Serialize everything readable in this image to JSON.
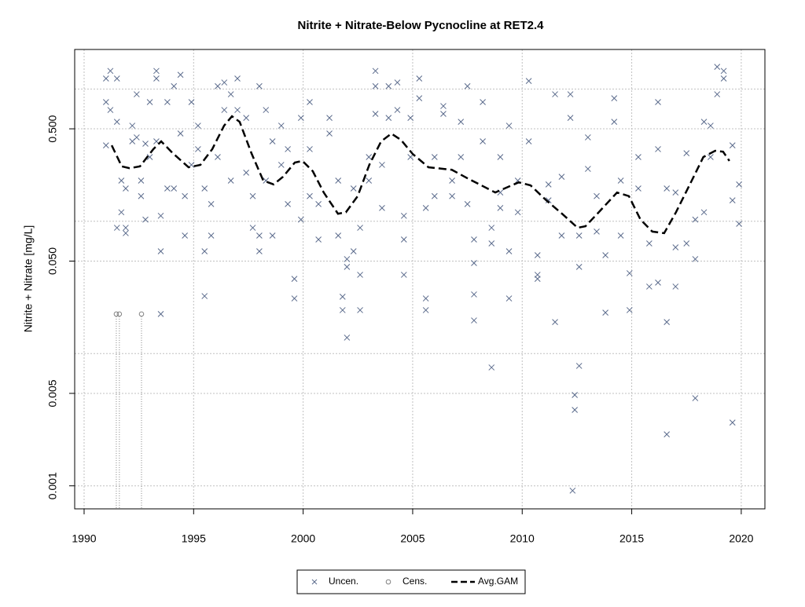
{
  "chart_data": {
    "type": "scatter",
    "title": "Nitrite + Nitrate-Below Pycnocline at RET2.4",
    "y_label": "Nitrite + Nitrate [mg/L]",
    "log_y": true,
    "grid": true,
    "legend": "bottom",
    "xlim": [
      1989.57,
      2021.08
    ],
    "ylim": [
      0.00067,
      1.99
    ],
    "xticks": [
      1990,
      1995,
      2000,
      2005,
      2010,
      2015,
      2020
    ],
    "yticks": [
      {
        "value": 0.5,
        "label": "0.500"
      },
      {
        "value": 0.05,
        "label": "0.050"
      },
      {
        "value": 0.005,
        "label": "0.005"
      },
      {
        "value": 0.001,
        "label": "0.001"
      }
    ],
    "minor_grid_y": [
      1,
      0.1,
      0.01
    ],
    "series": [
      {
        "name": "Uncen.",
        "marker": "x",
        "color": "#5b6b8c",
        "x": [
          1991.0,
          1991.0,
          1991.0,
          1991.2,
          1991.2,
          1991.5,
          1991.5,
          1991.5,
          1991.7,
          1991.7,
          1991.9,
          1991.9,
          1991.9,
          1992.2,
          1992.2,
          1992.4,
          1992.4,
          1992.6,
          1992.6,
          1992.8,
          1992.8,
          1993.0,
          1993.0,
          1993.3,
          1993.3,
          1993.3,
          1993.5,
          1993.5,
          1993.5,
          1993.8,
          1993.8,
          1994.1,
          1994.1,
          1994.4,
          1994.4,
          1994.6,
          1994.6,
          1994.9,
          1994.9,
          1995.2,
          1995.2,
          1995.5,
          1995.5,
          1995.5,
          1995.8,
          1995.8,
          1996.1,
          1996.1,
          1996.4,
          1996.4,
          1996.7,
          1996.7,
          1997.0,
          1997.0,
          1997.4,
          1997.4,
          1997.7,
          1997.7,
          1998.0,
          1998.0,
          1998.0,
          1998.3,
          1998.3,
          1998.6,
          1998.6,
          1999.0,
          1999.0,
          1999.3,
          1999.3,
          1999.6,
          1999.6,
          1999.9,
          1999.9,
          2000.3,
          2000.3,
          2000.3,
          2000.7,
          2000.7,
          2001.2,
          2001.2,
          2001.6,
          2001.6,
          2001.8,
          2001.8,
          2002.0,
          2002.0,
          2002.0,
          2002.3,
          2002.3,
          2002.6,
          2002.6,
          2002.6,
          2003.0,
          2003.0,
          2003.3,
          2003.3,
          2003.3,
          2003.6,
          2003.6,
          2003.9,
          2003.9,
          2004.3,
          2004.3,
          2004.6,
          2004.6,
          2004.6,
          2004.9,
          2004.9,
          2005.3,
          2005.3,
          2005.6,
          2005.6,
          2005.6,
          2006.0,
          2006.0,
          2006.4,
          2006.4,
          2006.8,
          2006.8,
          2007.2,
          2007.2,
          2007.5,
          2007.5,
          2007.8,
          2007.8,
          2007.8,
          2007.8,
          2008.2,
          2008.2,
          2008.6,
          2008.6,
          2008.6,
          2009.0,
          2009.0,
          2009.0,
          2009.4,
          2009.4,
          2009.4,
          2009.8,
          2009.8,
          2010.3,
          2010.3,
          2010.7,
          2010.7,
          2010.7,
          2011.2,
          2011.2,
          2011.5,
          2011.5,
          2011.8,
          2011.8,
          2012.2,
          2012.2,
          2012.3,
          2012.4,
          2012.4,
          2012.6,
          2012.6,
          2012.6,
          2013.0,
          2013.0,
          2013.4,
          2013.4,
          2013.8,
          2013.8,
          2014.2,
          2014.2,
          2014.5,
          2014.5,
          2014.9,
          2014.9,
          2015.3,
          2015.3,
          2015.8,
          2015.8,
          2016.2,
          2016.2,
          2016.2,
          2016.6,
          2016.6,
          2016.6,
          2017.0,
          2017.0,
          2017.0,
          2017.5,
          2017.5,
          2017.9,
          2017.9,
          2017.9,
          2018.3,
          2018.3,
          2018.6,
          2018.6,
          2018.9,
          2018.9,
          2019.2,
          2019.2,
          2019.6,
          2019.6,
          2019.6,
          2019.9,
          2019.9
        ],
        "values": [
          1.2,
          0.796,
          0.375,
          1.37,
          0.694,
          1.2,
          0.565,
          0.0893,
          0.203,
          0.117,
          0.177,
          0.0893,
          0.0813,
          0.402,
          0.528,
          0.912,
          0.431,
          0.155,
          0.203,
          0.103,
          0.386,
          0.796,
          0.306,
          1.37,
          1.2,
          0.402,
          0.0199,
          0.0593,
          0.11,
          0.796,
          0.177,
          1.05,
          0.177,
          1.28,
          0.461,
          0.078,
          0.155,
          0.796,
          0.267,
          0.528,
          0.351,
          0.177,
          0.0593,
          0.0272,
          0.135,
          0.078,
          1.05,
          0.306,
          1.12,
          0.694,
          0.203,
          0.912,
          1.2,
          0.694,
          0.605,
          0.233,
          0.155,
          0.0893,
          0.078,
          0.0593,
          1.05,
          0.694,
          0.203,
          0.078,
          0.402,
          0.528,
          0.267,
          0.351,
          0.135,
          0.0367,
          0.0261,
          0.103,
          0.605,
          0.796,
          0.351,
          0.155,
          0.135,
          0.0728,
          0.605,
          0.461,
          0.203,
          0.078,
          0.0213,
          0.0269,
          0.0518,
          0.0452,
          0.0132,
          0.177,
          0.0593,
          0.0394,
          0.0213,
          0.0893,
          0.306,
          0.203,
          1.37,
          1.05,
          0.649,
          0.267,
          0.126,
          1.05,
          0.605,
          1.12,
          0.694,
          0.0394,
          0.0728,
          0.11,
          0.306,
          0.605,
          1.2,
          0.851,
          0.0261,
          0.0213,
          0.126,
          0.306,
          0.155,
          0.743,
          0.649,
          0.203,
          0.155,
          0.565,
          0.306,
          1.05,
          0.135,
          0.0728,
          0.0483,
          0.028,
          0.0178,
          0.402,
          0.796,
          0.0893,
          0.068,
          0.00785,
          0.306,
          0.165,
          0.126,
          0.528,
          0.0593,
          0.0261,
          0.203,
          0.117,
          1.15,
          0.402,
          0.0554,
          0.0394,
          0.0367,
          0.144,
          0.19,
          0.912,
          0.0173,
          0.217,
          0.078,
          0.912,
          0.605,
          0.00092,
          0.00486,
          0.00375,
          0.00807,
          0.0452,
          0.078,
          0.249,
          0.431,
          0.155,
          0.0836,
          0.0204,
          0.0554,
          0.851,
          0.565,
          0.078,
          0.203,
          0.0213,
          0.0405,
          0.306,
          0.177,
          0.068,
          0.0321,
          0.0344,
          0.796,
          0.351,
          0.0173,
          0.00245,
          0.177,
          0.0321,
          0.0635,
          0.165,
          0.327,
          0.068,
          0.0518,
          0.0046,
          0.103,
          0.565,
          0.117,
          0.528,
          0.306,
          1.47,
          0.912,
          1.37,
          1.2,
          0.00301,
          0.144,
          0.375,
          0.19,
          0.0957
        ]
      },
      {
        "name": "Cens.",
        "marker": "o",
        "color": "#808080",
        "x": [
          1991.47,
          1991.61,
          1992.62
        ],
        "values": [
          0.0199,
          0.0199,
          0.0199
        ]
      },
      {
        "name": "Avg.GAM",
        "marker": "line",
        "color": "#000000",
        "x": [
          1991.26,
          1991.72,
          1992.08,
          1992.55,
          1993.16,
          1993.52,
          1994.05,
          1994.77,
          1995.31,
          1995.85,
          1996.39,
          1996.75,
          1997.1,
          1997.64,
          1998.18,
          1998.65,
          1999.08,
          1999.62,
          1999.97,
          2000.44,
          2000.94,
          2001.59,
          2001.95,
          2002.49,
          2003.02,
          2003.56,
          2004.03,
          2004.46,
          2005.0,
          2005.72,
          2006.79,
          2007.51,
          2008.05,
          2008.77,
          2009.84,
          2010.38,
          2011.1,
          2011.82,
          2012.53,
          2012.89,
          2013.43,
          2014.33,
          2014.87,
          2015.4,
          2015.94,
          2016.48,
          2017.02,
          2017.74,
          2018.27,
          2018.81,
          2019.17,
          2019.46
        ],
        "values": [
          0.375,
          0.26,
          0.252,
          0.26,
          0.351,
          0.402,
          0.327,
          0.256,
          0.267,
          0.351,
          0.528,
          0.622,
          0.565,
          0.327,
          0.203,
          0.19,
          0.217,
          0.278,
          0.286,
          0.239,
          0.165,
          0.114,
          0.117,
          0.155,
          0.267,
          0.402,
          0.46,
          0.413,
          0.323,
          0.256,
          0.245,
          0.211,
          0.19,
          0.165,
          0.197,
          0.187,
          0.144,
          0.114,
          0.0893,
          0.0918,
          0.114,
          0.165,
          0.155,
          0.103,
          0.0836,
          0.0813,
          0.117,
          0.203,
          0.306,
          0.341,
          0.336,
          0.286
        ]
      }
    ]
  }
}
